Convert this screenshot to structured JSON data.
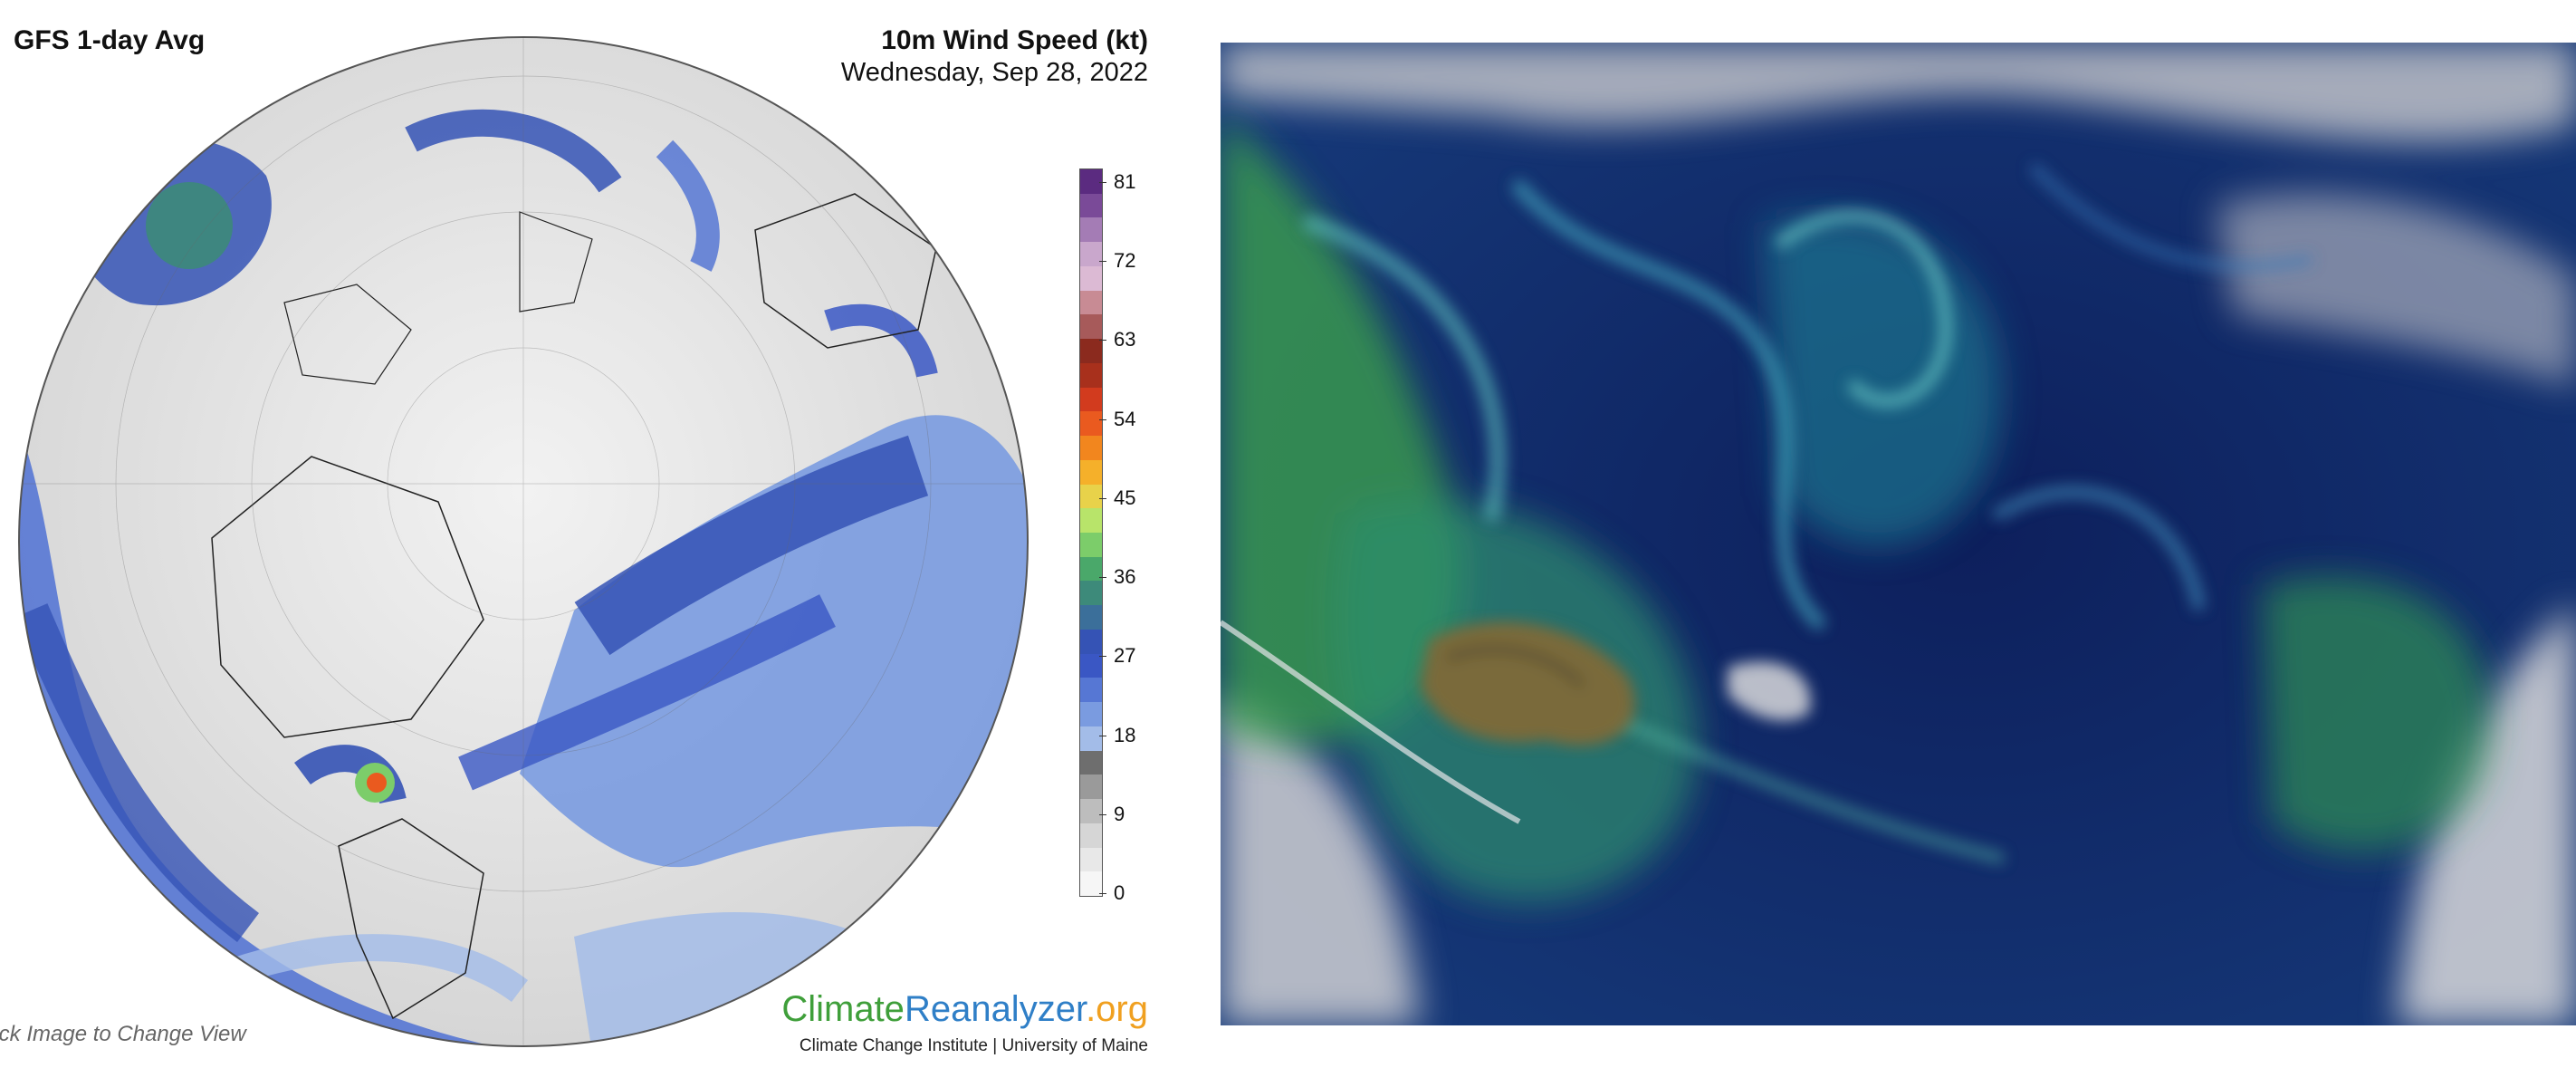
{
  "map_panel": {
    "model_title": "GFS 1-day Avg",
    "variable_title": "10m Wind Speed (kt)",
    "date": "Wednesday, Sep 28, 2022",
    "click_hint": "lick Image to Change View",
    "brand": {
      "part1": "Climate",
      "part2": "Reanalyzer",
      "part3": ".org"
    },
    "sub_brand": "Climate Change Institute | University of Maine",
    "colorbar": {
      "tick_labels": [
        "81",
        "72",
        "63",
        "54",
        "45",
        "36",
        "27",
        "18",
        "9",
        "0"
      ],
      "colors": [
        "#5b2b80",
        "#7a4a98",
        "#a47cb5",
        "#c9a7cc",
        "#dcbad4",
        "#c88b94",
        "#a75a5a",
        "#8b2a1e",
        "#a8301c",
        "#d23b1e",
        "#ea5a1f",
        "#f2861e",
        "#f5b02a",
        "#e8d24a",
        "#b8e46a",
        "#7ccd6a",
        "#4aa86a",
        "#3d8a7a",
        "#3b6f9a",
        "#3553b5",
        "#3a57c4",
        "#5677d4",
        "#7a9be0",
        "#a3bce8",
        "#6e6e6e",
        "#9a9a9a",
        "#bdbdbd",
        "#d6d6d6",
        "#e8e8e8",
        "#f6f6f6"
      ]
    }
  },
  "satellite_panel": {
    "colors": {
      "ocean_deep": "#0d1f5c",
      "ocean_teal": "#1d8a9a",
      "bloom_green": "#3da64a",
      "island_brown": "#7a6a3a",
      "cloud_white": "#d8d8d8"
    }
  }
}
